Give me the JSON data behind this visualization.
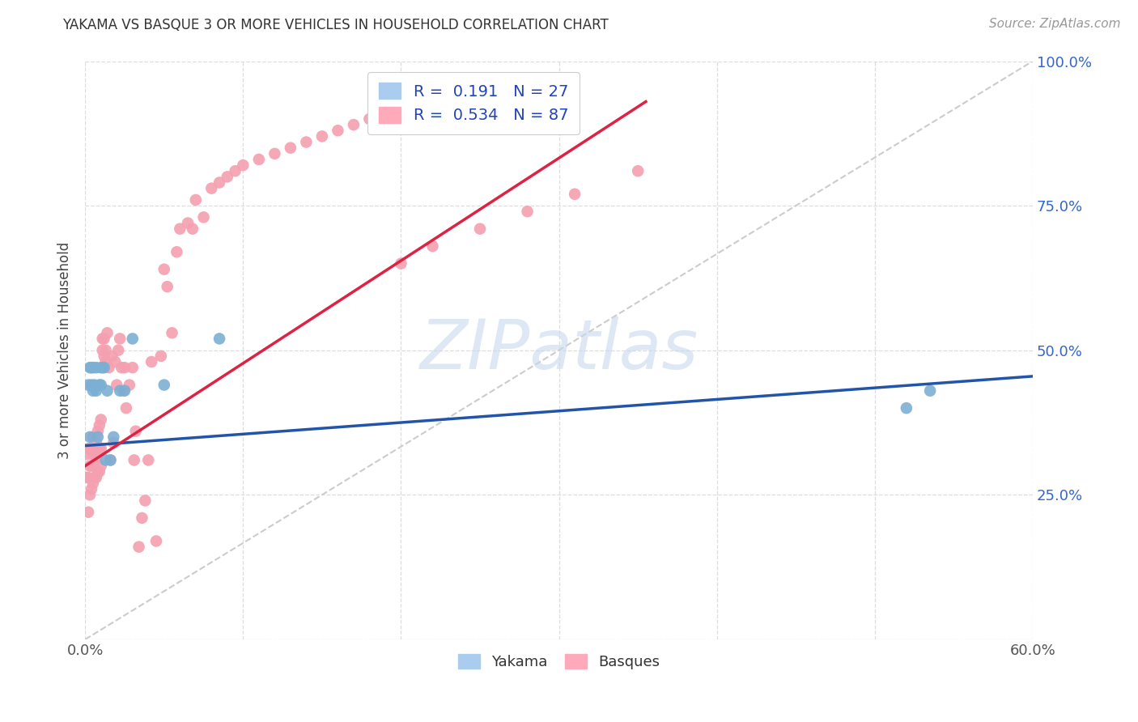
{
  "title": "YAKAMA VS BASQUE 3 OR MORE VEHICLES IN HOUSEHOLD CORRELATION CHART",
  "source": "Source: ZipAtlas.com",
  "ylabel": "3 or more Vehicles in Household",
  "xlim": [
    0.0,
    0.6
  ],
  "ylim": [
    0.0,
    1.0
  ],
  "ytick_labels_right": [
    "100.0%",
    "75.0%",
    "50.0%",
    "25.0%"
  ],
  "ytick_positions_right": [
    1.0,
    0.75,
    0.5,
    0.25
  ],
  "background_color": "#ffffff",
  "watermark": "ZIPatlas",
  "yakama_color": "#7bafd4",
  "basque_color": "#f4a0b0",
  "trend_yakama_color": "#2255aa",
  "trend_basque_color": "#dd2244",
  "diagonal_color": "#cccccc",
  "grid_color": "#dddddd",
  "yk_trend_x0": 0.0,
  "yk_trend_y0": 0.335,
  "yk_trend_x1": 0.6,
  "yk_trend_y1": 0.455,
  "bq_trend_x0": 0.0,
  "bq_trend_y0": 0.3,
  "bq_trend_x1": 0.355,
  "bq_trend_y1": 0.93,
  "yakama_x": [
    0.002,
    0.003,
    0.003,
    0.004,
    0.004,
    0.005,
    0.005,
    0.006,
    0.007,
    0.007,
    0.008,
    0.009,
    0.01,
    0.01,
    0.011,
    0.012,
    0.013,
    0.014,
    0.016,
    0.018,
    0.022,
    0.025,
    0.03,
    0.05,
    0.085,
    0.52,
    0.535
  ],
  "yakama_y": [
    0.44,
    0.35,
    0.47,
    0.44,
    0.47,
    0.43,
    0.47,
    0.44,
    0.43,
    0.47,
    0.35,
    0.44,
    0.44,
    0.47,
    0.47,
    0.47,
    0.31,
    0.43,
    0.31,
    0.35,
    0.43,
    0.43,
    0.52,
    0.44,
    0.52,
    0.4,
    0.43
  ],
  "basque_x": [
    0.001,
    0.001,
    0.002,
    0.002,
    0.002,
    0.003,
    0.003,
    0.003,
    0.004,
    0.004,
    0.004,
    0.005,
    0.005,
    0.005,
    0.006,
    0.006,
    0.006,
    0.007,
    0.007,
    0.007,
    0.008,
    0.008,
    0.008,
    0.009,
    0.009,
    0.009,
    0.01,
    0.01,
    0.01,
    0.011,
    0.011,
    0.012,
    0.012,
    0.013,
    0.013,
    0.014,
    0.015,
    0.016,
    0.017,
    0.018,
    0.019,
    0.02,
    0.021,
    0.022,
    0.023,
    0.024,
    0.025,
    0.026,
    0.028,
    0.03,
    0.031,
    0.032,
    0.034,
    0.036,
    0.038,
    0.04,
    0.042,
    0.045,
    0.048,
    0.05,
    0.052,
    0.055,
    0.058,
    0.06,
    0.065,
    0.068,
    0.07,
    0.075,
    0.08,
    0.085,
    0.09,
    0.095,
    0.1,
    0.11,
    0.12,
    0.13,
    0.14,
    0.15,
    0.16,
    0.17,
    0.18,
    0.2,
    0.22,
    0.25,
    0.28,
    0.31,
    0.35
  ],
  "basque_y": [
    0.28,
    0.32,
    0.22,
    0.28,
    0.33,
    0.25,
    0.3,
    0.33,
    0.26,
    0.3,
    0.33,
    0.27,
    0.32,
    0.35,
    0.28,
    0.32,
    0.35,
    0.28,
    0.31,
    0.34,
    0.29,
    0.33,
    0.36,
    0.29,
    0.33,
    0.37,
    0.3,
    0.33,
    0.38,
    0.5,
    0.52,
    0.49,
    0.52,
    0.5,
    0.48,
    0.53,
    0.47,
    0.31,
    0.49,
    0.34,
    0.48,
    0.44,
    0.5,
    0.52,
    0.47,
    0.43,
    0.47,
    0.4,
    0.44,
    0.47,
    0.31,
    0.36,
    0.16,
    0.21,
    0.24,
    0.31,
    0.48,
    0.17,
    0.49,
    0.64,
    0.61,
    0.53,
    0.67,
    0.71,
    0.72,
    0.71,
    0.76,
    0.73,
    0.78,
    0.79,
    0.8,
    0.81,
    0.82,
    0.83,
    0.84,
    0.85,
    0.86,
    0.87,
    0.88,
    0.89,
    0.9,
    0.65,
    0.68,
    0.71,
    0.74,
    0.77,
    0.81
  ]
}
